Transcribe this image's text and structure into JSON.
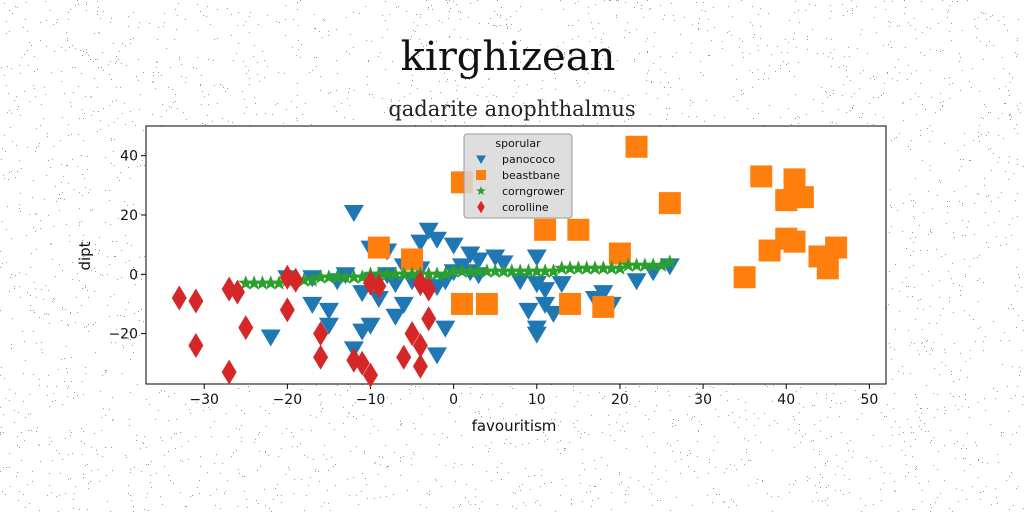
{
  "chart_data": {
    "type": "scatter",
    "title": "kirghizean",
    "subtitle": "qadarite anophthalmus",
    "xlabel": "favouritism",
    "ylabel": "dipt",
    "xlim": [
      -37,
      52
    ],
    "ylim": [
      -37,
      50
    ],
    "xticks": [
      -30,
      -20,
      -10,
      0,
      10,
      20,
      30,
      40,
      50
    ],
    "yticks": [
      -20,
      0,
      20,
      40
    ],
    "grid": false,
    "legend": {
      "title": "sporular",
      "placement": "top-center"
    },
    "series": [
      {
        "name": "panococo",
        "marker": "triangle-down",
        "color": "#1f77b4",
        "points": [
          [
            -12,
            21
          ],
          [
            -3,
            15
          ],
          [
            -2,
            12
          ],
          [
            -4,
            11
          ],
          [
            -10,
            9
          ],
          [
            -8,
            8
          ],
          [
            0,
            10
          ],
          [
            2,
            7
          ],
          [
            5,
            6
          ],
          [
            6,
            4
          ],
          [
            10,
            6
          ],
          [
            3,
            5
          ],
          [
            1,
            3
          ],
          [
            -6,
            3
          ],
          [
            -4,
            2
          ],
          [
            -1,
            -2
          ],
          [
            0,
            1
          ],
          [
            2,
            1
          ],
          [
            3,
            0
          ],
          [
            -20,
            -1
          ],
          [
            -17,
            -1
          ],
          [
            -14,
            -2
          ],
          [
            -13,
            0
          ],
          [
            -10,
            -2
          ],
          [
            -8,
            0
          ],
          [
            -7,
            -3
          ],
          [
            -5,
            -2
          ],
          [
            -4,
            -4
          ],
          [
            -2,
            -4
          ],
          [
            8,
            -2
          ],
          [
            10,
            -3
          ],
          [
            11,
            -5
          ],
          [
            13,
            -3
          ],
          [
            -17,
            -10
          ],
          [
            -15,
            -12
          ],
          [
            -11,
            -6
          ],
          [
            -9,
            -8
          ],
          [
            -6,
            -10
          ],
          [
            -7,
            -14
          ],
          [
            -10,
            -17
          ],
          [
            -11,
            -19
          ],
          [
            -15,
            -17
          ],
          [
            -22,
            -21
          ],
          [
            -12,
            -25
          ],
          [
            -2,
            -27
          ],
          [
            -1,
            -18
          ],
          [
            9,
            -12
          ],
          [
            10,
            -18
          ],
          [
            11,
            -10
          ],
          [
            12,
            -13
          ],
          [
            17,
            -8
          ],
          [
            19,
            -10
          ],
          [
            22,
            -2
          ],
          [
            24,
            1
          ],
          [
            26,
            3
          ],
          [
            18,
            -6
          ],
          [
            10,
            -20
          ]
        ]
      },
      {
        "name": "beastbane",
        "marker": "square",
        "color": "#ff7f0e",
        "points": [
          [
            22,
            43
          ],
          [
            1,
            31
          ],
          [
            26,
            24
          ],
          [
            37,
            33
          ],
          [
            41,
            32
          ],
          [
            40,
            25
          ],
          [
            42,
            26
          ],
          [
            11,
            15
          ],
          [
            15,
            15
          ],
          [
            -9,
            9
          ],
          [
            -5,
            5
          ],
          [
            20,
            7
          ],
          [
            38,
            8
          ],
          [
            41,
            11
          ],
          [
            40,
            12
          ],
          [
            44,
            6
          ],
          [
            46,
            9
          ],
          [
            45,
            2
          ],
          [
            35,
            -1
          ],
          [
            1,
            -10
          ],
          [
            4,
            -10
          ],
          [
            14,
            -10
          ],
          [
            18,
            -11
          ]
        ]
      },
      {
        "name": "corngrower",
        "marker": "star",
        "color": "#2ca02c",
        "points": [
          [
            -25,
            -3
          ],
          [
            -24,
            -3
          ],
          [
            -23,
            -3
          ],
          [
            -22,
            -3
          ],
          [
            -21,
            -3
          ],
          [
            -20,
            -2
          ],
          [
            -19,
            -2
          ],
          [
            -18,
            -2
          ],
          [
            -17,
            -2
          ],
          [
            -16,
            -1
          ],
          [
            -15,
            -1
          ],
          [
            -14,
            -1
          ],
          [
            -13,
            -1
          ],
          [
            -12,
            -1
          ],
          [
            -11,
            -1
          ],
          [
            -10,
            0
          ],
          [
            -9,
            0
          ],
          [
            -8,
            0
          ],
          [
            -7,
            0
          ],
          [
            -6,
            0
          ],
          [
            -5,
            0
          ],
          [
            -4,
            0
          ],
          [
            -3,
            0
          ],
          [
            -2,
            0
          ],
          [
            -1,
            0
          ],
          [
            0,
            1
          ],
          [
            1,
            1
          ],
          [
            2,
            1
          ],
          [
            3,
            1
          ],
          [
            4,
            1
          ],
          [
            5,
            1
          ],
          [
            6,
            1
          ],
          [
            7,
            1
          ],
          [
            8,
            1
          ],
          [
            9,
            1
          ],
          [
            10,
            1
          ],
          [
            11,
            1
          ],
          [
            12,
            1
          ],
          [
            13,
            2
          ],
          [
            14,
            2
          ],
          [
            15,
            2
          ],
          [
            16,
            2
          ],
          [
            17,
            2
          ],
          [
            18,
            2
          ],
          [
            19,
            2
          ],
          [
            20,
            2
          ],
          [
            21,
            3
          ],
          [
            22,
            3
          ],
          [
            23,
            3
          ],
          [
            24,
            3
          ],
          [
            25,
            3
          ],
          [
            26,
            4
          ]
        ]
      },
      {
        "name": "corolline",
        "marker": "thin-diamond",
        "color": "#d62728",
        "points": [
          [
            -33,
            -8
          ],
          [
            -31,
            -9
          ],
          [
            -27,
            -5
          ],
          [
            -26,
            -6
          ],
          [
            -20,
            -1
          ],
          [
            -19,
            -2
          ],
          [
            -20,
            -12
          ],
          [
            -25,
            -18
          ],
          [
            -31,
            -24
          ],
          [
            -27,
            -33
          ],
          [
            -16,
            -20
          ],
          [
            -16,
            -28
          ],
          [
            -12,
            -29
          ],
          [
            -11,
            -30
          ],
          [
            -10,
            -34
          ],
          [
            -6,
            -28
          ],
          [
            -5,
            -20
          ],
          [
            -4,
            -24
          ],
          [
            -4,
            -31
          ],
          [
            -3,
            -15
          ],
          [
            -4,
            -3
          ],
          [
            -3,
            -5
          ],
          [
            -10,
            -3
          ],
          [
            -9,
            -4
          ]
        ]
      }
    ]
  }
}
